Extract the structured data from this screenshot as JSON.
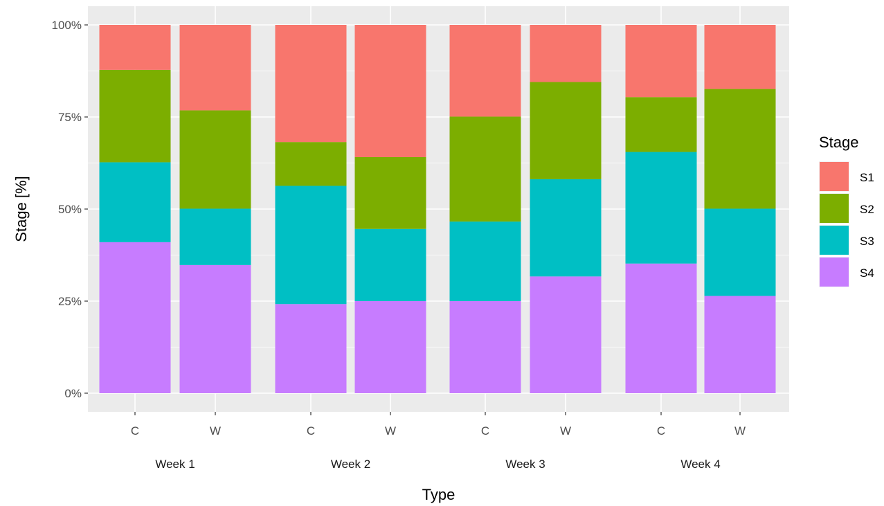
{
  "chart_data": {
    "type": "bar",
    "stacked": true,
    "percent": true,
    "xlabel": "Type",
    "ylabel": "Stage [%]",
    "ylim": [
      0,
      100
    ],
    "y_ticks": [
      "0%",
      "25%",
      "50%",
      "75%",
      "100%"
    ],
    "grid": true,
    "legend_title": "Stage",
    "legend_position": "right",
    "groups": [
      "Week 1",
      "Week 2",
      "Week 3",
      "Week 4"
    ],
    "categories": [
      "C",
      "W"
    ],
    "bars": [
      {
        "group": "Week 1",
        "category": "C",
        "values": {
          "S4": 41,
          "S3": 21.7,
          "S2": 25.1,
          "S1": 12.2
        }
      },
      {
        "group": "Week 1",
        "category": "W",
        "values": {
          "S4": 34.8,
          "S3": 15.3,
          "S2": 26.7,
          "S1": 23.2
        }
      },
      {
        "group": "Week 2",
        "category": "C",
        "values": {
          "S4": 24.2,
          "S3": 32.1,
          "S2": 11.9,
          "S1": 31.8
        }
      },
      {
        "group": "Week 2",
        "category": "W",
        "values": {
          "S4": 25,
          "S3": 19.6,
          "S2": 19.5,
          "S1": 35.9
        }
      },
      {
        "group": "Week 3",
        "category": "C",
        "values": {
          "S4": 25,
          "S3": 21.6,
          "S2": 28.5,
          "S1": 24.9
        }
      },
      {
        "group": "Week 3",
        "category": "W",
        "values": {
          "S4": 31.7,
          "S3": 26.4,
          "S2": 26.4,
          "S1": 15.5
        }
      },
      {
        "group": "Week 4",
        "category": "C",
        "values": {
          "S4": 35.2,
          "S3": 30.3,
          "S2": 14.9,
          "S1": 19.6
        }
      },
      {
        "group": "Week 4",
        "category": "W",
        "values": {
          "S4": 26.4,
          "S3": 23.7,
          "S2": 32.5,
          "S1": 17.4
        }
      }
    ],
    "series": [
      {
        "name": "S1",
        "color": "#F8766D"
      },
      {
        "name": "S2",
        "color": "#7CAE00"
      },
      {
        "name": "S3",
        "color": "#00BFC4"
      },
      {
        "name": "S4",
        "color": "#C77CFF"
      }
    ],
    "colors": {
      "panel_background": "#EBEBEB",
      "grid_major": "#FFFFFF",
      "page_background": "#FFFFFF"
    }
  }
}
